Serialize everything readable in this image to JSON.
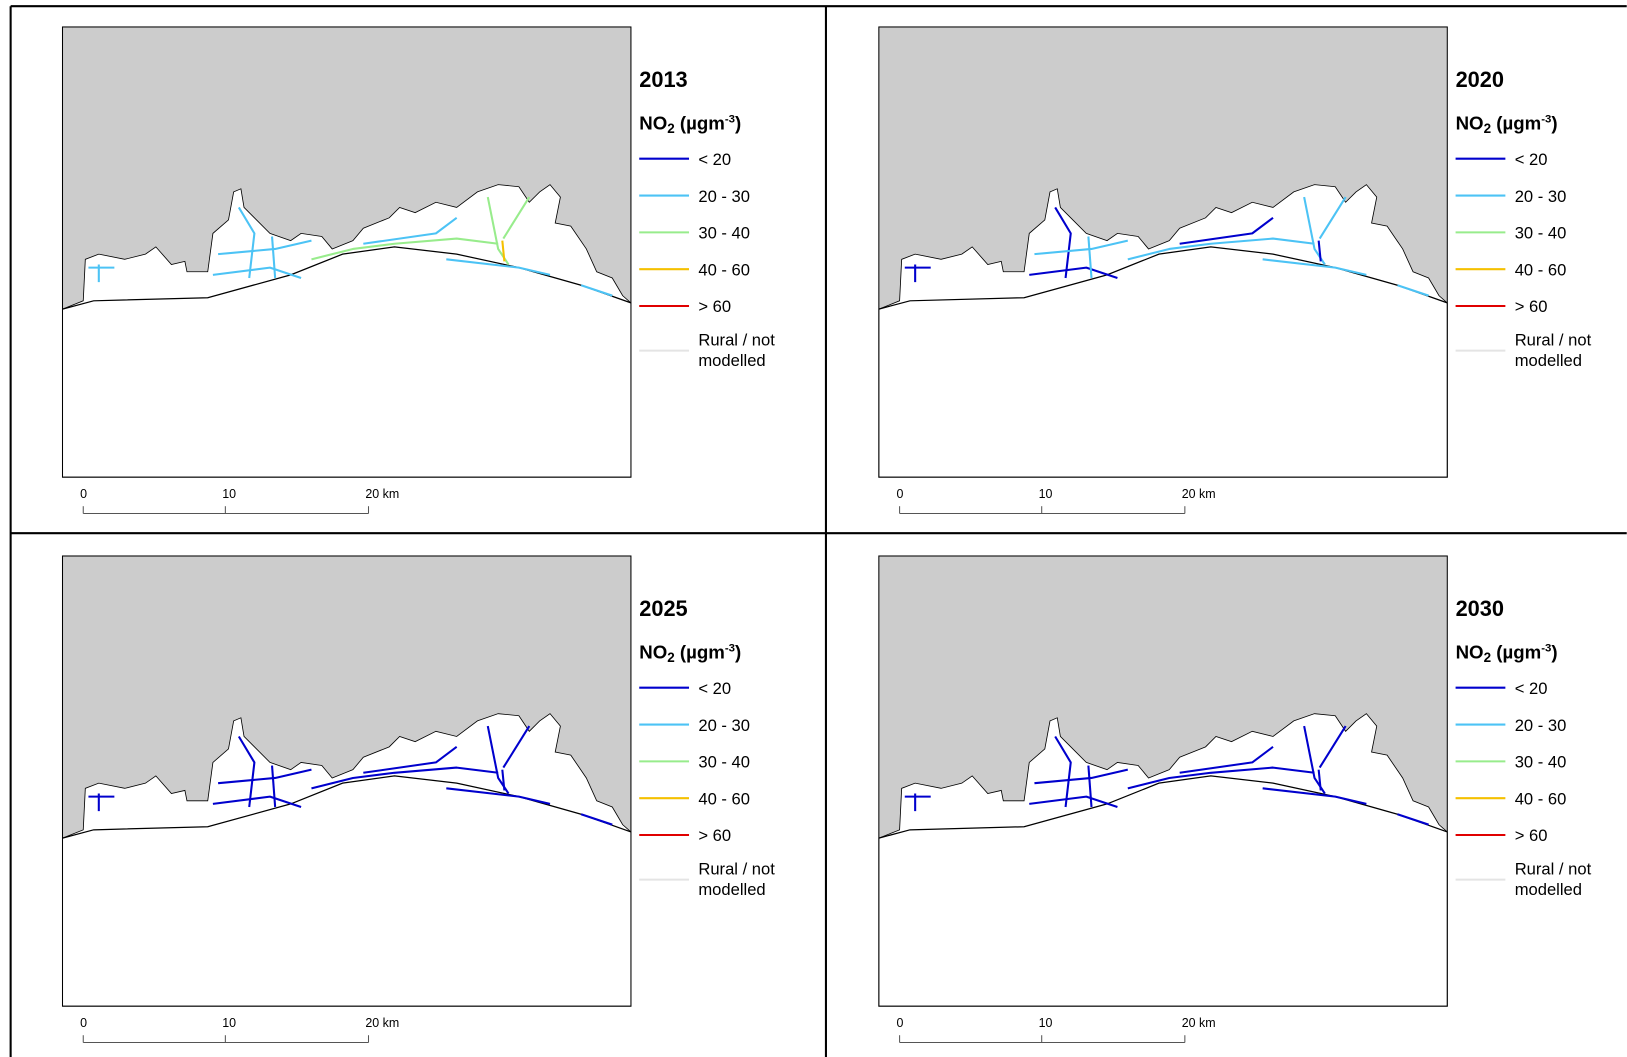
{
  "panels": [
    {
      "year": "2013"
    },
    {
      "year": "2020"
    },
    {
      "year": "2025"
    },
    {
      "year": "2030"
    }
  ],
  "legend": {
    "title": {
      "pollutant": "NO",
      "subscript": "2",
      "unit": "(µgm",
      "superscript": "-3",
      "close": ")"
    },
    "items": [
      {
        "label": "< 20",
        "color": "#0000cd"
      },
      {
        "label": "20 - 30",
        "color": "#4cc3f5"
      },
      {
        "label": "30 - 40",
        "color": "#98ec8c"
      },
      {
        "label": "40 - 60",
        "color": "#f5c000"
      },
      {
        "label": "> 60",
        "color": "#e00000"
      },
      {
        "label_lines": [
          "Rural / not",
          "modelled"
        ],
        "color": "#e4e4e4"
      }
    ]
  },
  "scale_bar": {
    "labels": [
      "0",
      "10",
      "20 km"
    ]
  }
}
